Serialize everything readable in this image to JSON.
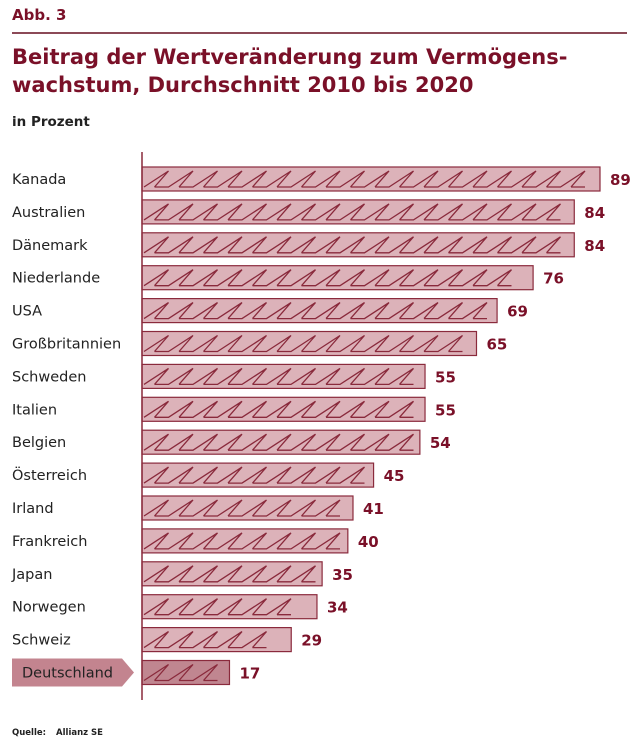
{
  "figure": {
    "label": "Abb. 3",
    "title_line1": "Beitrag der Wertveränderung zum Vermögens-",
    "title_line2": "wachstum, Durchschnitt 2010 bis 2020",
    "subtitle": "in Prozent",
    "source_label": "Quelle:",
    "source_value": "Allianz SE"
  },
  "colors": {
    "accent": "#7a1028",
    "bar_fill": "#dcb2b9",
    "bar_fill_highlight": "#c08690",
    "bar_stroke": "#8a2a3c",
    "highlight_tag": "#c3848f"
  },
  "chart_data": {
    "type": "bar",
    "orientation": "horizontal",
    "title": "Beitrag der Wertveränderung zum Vermögenswachstum, Durchschnitt 2010 bis 2020",
    "subtitle": "in Prozent",
    "xlabel": "",
    "ylabel": "",
    "xlim": [
      0,
      89
    ],
    "grid": false,
    "legend": "none",
    "categories": [
      "Kanada",
      "Australien",
      "Dänemark",
      "Niederlande",
      "USA",
      "Großbritannien",
      "Schweden",
      "Italien",
      "Belgien",
      "Österreich",
      "Irland",
      "Frankreich",
      "Japan",
      "Norwegen",
      "Schweiz",
      "Deutschland"
    ],
    "values": [
      89,
      84,
      84,
      76,
      69,
      65,
      55,
      55,
      54,
      45,
      41,
      40,
      35,
      34,
      29,
      17
    ],
    "highlight": "Deutschland",
    "data_labels": [
      "89",
      "84",
      "84",
      "76",
      "69",
      "65",
      "55",
      "55",
      "54",
      "45",
      "41",
      "40",
      "35",
      "34",
      "29",
      "17"
    ]
  }
}
